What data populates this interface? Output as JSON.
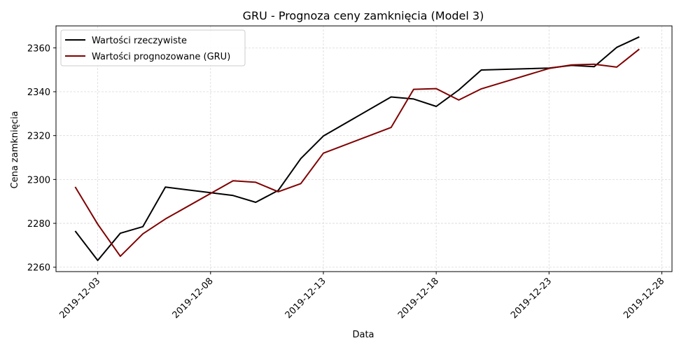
{
  "chart_data": {
    "type": "line",
    "title": "GRU - Prognoza ceny zamknięcia (Model 3)",
    "xlabel": "Data",
    "ylabel": "Cena zamknięcia",
    "x": [
      "2019-12-02",
      "2019-12-03",
      "2019-12-04",
      "2019-12-05",
      "2019-12-06",
      "2019-12-09",
      "2019-12-10",
      "2019-12-11",
      "2019-12-12",
      "2019-12-13",
      "2019-12-16",
      "2019-12-17",
      "2019-12-18",
      "2019-12-19",
      "2019-12-20",
      "2019-12-23",
      "2019-12-24",
      "2019-12-25",
      "2019-12-26",
      "2019-12-27"
    ],
    "series": [
      {
        "name": "Wartości rzeczywiste",
        "color": "#000000",
        "values": [
          2276.5,
          2263.1,
          2275.5,
          2278.5,
          2296.5,
          2292.7,
          2289.6,
          2295.0,
          2309.5,
          2319.8,
          2337.6,
          2336.7,
          2333.3,
          2340.8,
          2349.9,
          2350.8,
          2352.0,
          2351.4,
          2360.2,
          2365.0
        ]
      },
      {
        "name": "Wartości prognozowane (GRU)",
        "color": "#800000",
        "values": [
          2296.6,
          2279.6,
          2265.0,
          2275.2,
          2282.0,
          2299.4,
          2298.7,
          2294.4,
          2298.1,
          2312.0,
          2323.7,
          2341.1,
          2341.4,
          2336.2,
          2341.3,
          2350.6,
          2352.2,
          2352.5,
          2351.2,
          2359.4
        ]
      }
    ],
    "xticks": [
      "2019-12-03",
      "2019-12-08",
      "2019-12-13",
      "2019-12-18",
      "2019-12-23",
      "2019-12-28"
    ],
    "yticks": [
      2260,
      2280,
      2300,
      2320,
      2340,
      2360
    ],
    "xlim": [
      "2019-12-01",
      "2019-12-28"
    ],
    "ylim": [
      2258,
      2370
    ],
    "grid": true,
    "legend_position": "top-left"
  }
}
